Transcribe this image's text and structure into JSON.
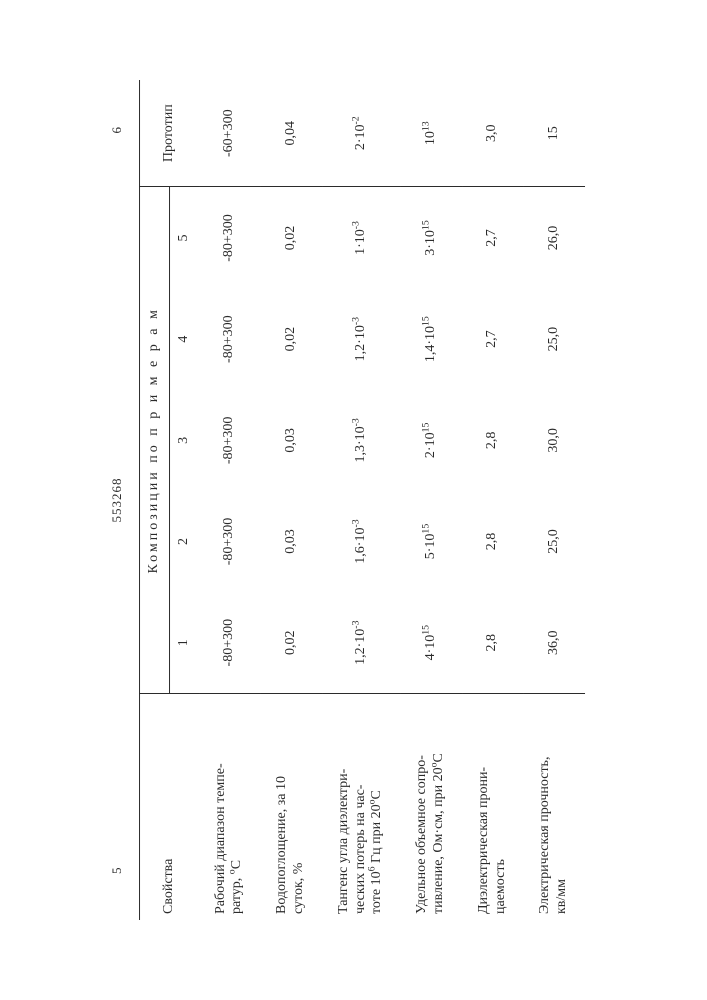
{
  "doc": {
    "left_page": "5",
    "doc_number": "553268",
    "right_page": "6"
  },
  "header": {
    "properties": "Свойства",
    "group": "Композиции   по   п р и м е р а м",
    "cols": [
      "1",
      "2",
      "3",
      "4",
      "5"
    ],
    "prototype": "Прототип"
  },
  "rows": [
    {
      "label_html": "Рабочий диапазон темпе-<br>ратур, <sup>о</sup>С",
      "cells": [
        "-80+300",
        "-80+300",
        "-80+300",
        "-80+300",
        "-80+300"
      ],
      "proto": "-60+300"
    },
    {
      "label_html": "Водопоглощение, за 10<br>суток, %",
      "cells": [
        "0,02",
        "0,03",
        "0,03",
        "0,02",
        "0,02"
      ],
      "proto": "0,04"
    },
    {
      "label_html": "Тангенс угла диэлектри-<br>ческих потерь на час-<br>тоте 10<sup>6</sup> Гц при 20<sup>о</sup>С",
      "cells": [
        "1,2·10<sup>-3</sup>",
        "1,6·10<sup>-3</sup>",
        "1,3·10<sup>-3</sup>",
        "1,2·10<sup>-3</sup>",
        "1·10<sup>-3</sup>"
      ],
      "proto": "2·10<sup>-2</sup>"
    },
    {
      "label_html": "Удельное объемное сопро-<br>тивление, Ом·см, при 20<sup>о</sup>С",
      "cells": [
        "4·10<sup>15</sup>",
        "5·10<sup>15</sup>",
        "2·10<sup>15</sup>",
        "1,4·10<sup>15</sup>",
        "3·10<sup>15</sup>"
      ],
      "proto": "10<sup>13</sup>"
    },
    {
      "label_html": "Диэлектрическая прони-<br>цаемость",
      "cells": [
        "2,8",
        "2,8",
        "2,8",
        "2,7",
        "2,7"
      ],
      "proto": "3,0"
    },
    {
      "label_html": "Электрическая прочность,<br>кв/мм",
      "cells": [
        "36,0",
        "25,0",
        "30,0",
        "25,0",
        "26,0"
      ],
      "proto": "15"
    }
  ]
}
